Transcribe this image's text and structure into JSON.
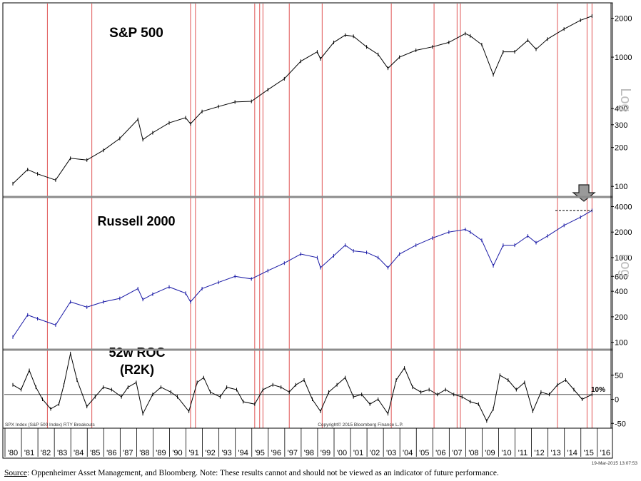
{
  "chart_data": [
    {
      "type": "line",
      "title": "S&P 500",
      "scale": "log",
      "axis_label": "Log",
      "y_ticks": [
        100,
        200,
        300,
        400,
        1000,
        2000
      ],
      "ylim": [
        85,
        2500
      ],
      "series": [
        {
          "color": "#000000",
          "x": [
            1980,
            1980.9,
            1981.5,
            1982.6,
            1983.5,
            1984.5,
            1985.5,
            1986.5,
            1987.6,
            1987.9,
            1988.5,
            1989.5,
            1990.5,
            1990.8,
            1991.5,
            1992.5,
            1993.5,
            1994.5,
            1995.5,
            1996.5,
            1997.5,
            1998.5,
            1998.7,
            1999.5,
            2000.2,
            2000.7,
            2001.5,
            2002.2,
            2002.8,
            2003.5,
            2004.5,
            2005.5,
            2006.5,
            2007.5,
            2007.8,
            2008.5,
            2009.2,
            2009.8,
            2010.5,
            2011.3,
            2011.8,
            2012.5,
            2013.5,
            2014.5,
            2015.2
          ],
          "y": [
            105,
            135,
            125,
            112,
            165,
            160,
            190,
            235,
            330,
            230,
            260,
            310,
            340,
            305,
            380,
            415,
            450,
            455,
            560,
            680,
            930,
            1100,
            970,
            1300,
            1480,
            1450,
            1200,
            1050,
            820,
            1000,
            1130,
            1200,
            1300,
            1520,
            1460,
            1250,
            730,
            1100,
            1100,
            1350,
            1150,
            1380,
            1650,
            1930,
            2080
          ]
        }
      ]
    },
    {
      "type": "line",
      "title": "Russell 2000",
      "scale": "log",
      "axis_label": "Log",
      "y_ticks": [
        100,
        200,
        400,
        600,
        1000,
        2000,
        4000
      ],
      "ylim": [
        85,
        5000
      ],
      "annotations": [
        "dashed resistance line near 2014-2015 high",
        "down arrow marker"
      ],
      "series": [
        {
          "color": "#1a1aa6",
          "x": [
            1980,
            1980.9,
            1981.5,
            1982.6,
            1983.5,
            1984.5,
            1985.5,
            1986.5,
            1987.6,
            1987.9,
            1988.5,
            1989.5,
            1990.5,
            1990.8,
            1991.5,
            1992.5,
            1993.5,
            1994.5,
            1995.5,
            1996.5,
            1997.5,
            1998.5,
            1998.7,
            1999.5,
            2000.2,
            2000.7,
            2001.5,
            2002.2,
            2002.8,
            2003.5,
            2004.5,
            2005.5,
            2006.5,
            2007.5,
            2007.8,
            2008.5,
            2009.2,
            2009.8,
            2010.5,
            2011.3,
            2011.8,
            2012.5,
            2013.5,
            2014.5,
            2015.2
          ],
          "y": [
            115,
            210,
            190,
            160,
            300,
            260,
            300,
            330,
            430,
            320,
            370,
            450,
            380,
            300,
            430,
            510,
            600,
            560,
            700,
            860,
            1100,
            1000,
            760,
            1050,
            1400,
            1200,
            1150,
            1000,
            760,
            1100,
            1400,
            1700,
            2000,
            2150,
            2000,
            1600,
            800,
            1400,
            1400,
            1800,
            1500,
            1800,
            2400,
            3000,
            3600
          ]
        }
      ]
    },
    {
      "type": "line",
      "title": "52w ROC\n(R2K)",
      "y_ticks": [
        50,
        0,
        -50
      ],
      "ylim": [
        -60,
        100
      ],
      "reference_line": {
        "value": 10,
        "label": "10%"
      },
      "series": [
        {
          "color": "#000000",
          "x": [
            1980,
            1980.5,
            1981,
            1981.4,
            1981.8,
            1982.3,
            1982.8,
            1983.1,
            1983.5,
            1983.9,
            1984.5,
            1985,
            1985.5,
            1986,
            1986.6,
            1987,
            1987.5,
            1987.9,
            1988.5,
            1989,
            1989.6,
            1990,
            1990.7,
            1991.2,
            1991.6,
            1992,
            1992.6,
            1993,
            1993.6,
            1994,
            1994.7,
            1995.2,
            1995.8,
            1996.3,
            1996.8,
            1997.2,
            1997.7,
            1998.2,
            1998.7,
            1999.2,
            1999.7,
            2000.2,
            2000.7,
            2001.2,
            2001.7,
            2002.2,
            2002.8,
            2003.3,
            2003.8,
            2004.3,
            2004.8,
            2005.3,
            2005.8,
            2006.3,
            2006.8,
            2007.3,
            2007.8,
            2008.3,
            2008.8,
            2009.2,
            2009.6,
            2010.1,
            2010.6,
            2011.1,
            2011.6,
            2012.1,
            2012.6,
            2013.1,
            2013.6,
            2014.1,
            2014.6,
            2015.2
          ],
          "y": [
            30,
            20,
            60,
            25,
            0,
            -20,
            -10,
            30,
            95,
            40,
            -15,
            5,
            25,
            20,
            5,
            25,
            35,
            -30,
            10,
            25,
            15,
            5,
            -25,
            35,
            45,
            15,
            5,
            25,
            20,
            -5,
            -10,
            20,
            30,
            25,
            15,
            30,
            40,
            0,
            -25,
            15,
            30,
            45,
            5,
            10,
            -10,
            0,
            -30,
            40,
            65,
            25,
            15,
            20,
            10,
            20,
            10,
            5,
            -5,
            -10,
            -45,
            -20,
            50,
            40,
            20,
            35,
            -25,
            15,
            10,
            30,
            40,
            20,
            0,
            10
          ]
        }
      ]
    }
  ],
  "x_axis": {
    "labels": [
      "'80",
      "'81",
      "'82",
      "'83",
      "'84",
      "'85",
      "'86",
      "'87",
      "'88",
      "'89",
      "'90",
      "'91",
      "'92",
      "'93",
      "'94",
      "'95",
      "'96",
      "'97",
      "'98",
      "'99",
      "'00",
      "'01",
      "'02",
      "'03",
      "'04",
      "'05",
      "'06",
      "'07",
      "'08",
      "'09",
      "'10",
      "'11",
      "'12",
      "'13",
      "'14",
      "'15",
      "'16"
    ]
  },
  "highlight_years": [
    1982.1,
    1984.8,
    1990.8,
    1991.1,
    1994.7,
    1995.0,
    1995.2,
    1996.8,
    1998.8,
    2003.0,
    2005.6,
    2007.0,
    2007.2,
    2013.1,
    2014.9,
    2015.2
  ],
  "captions": {
    "inner_left": "SPX Index (S&P 500 Index) RTY Breakouts",
    "inner_center": "Copyright© 2015 Bloomberg Finance L.P.",
    "inner_right": "19-Mar-2015 13:07:53"
  },
  "footer": {
    "source_label": "Source",
    "text": ": Oppenheimer Asset Management, and Bloomberg.  Note: These results cannot and should not be viewed as an indicator of future performance."
  },
  "colors": {
    "highlight": "#e05555",
    "russell": "#1a1aa6",
    "divider": "#8c8c8c"
  }
}
